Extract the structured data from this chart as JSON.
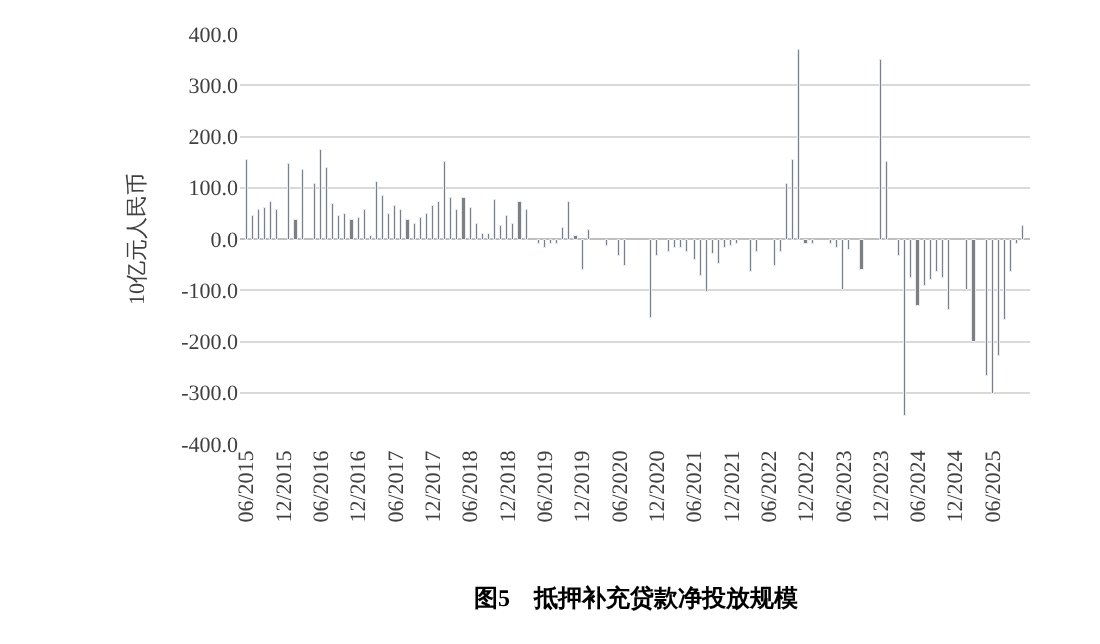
{
  "chart_data": {
    "type": "bar",
    "title": "图5　抵押补充贷款净投放规模",
    "ylabel": "10亿元人民币",
    "categories": [
      "06/2015",
      null,
      null,
      null,
      null,
      null,
      "12/2015",
      null,
      null,
      null,
      null,
      null,
      "06/2016",
      null,
      null,
      null,
      null,
      null,
      "12/2016",
      null,
      null,
      null,
      null,
      null,
      "06/2017",
      null,
      null,
      null,
      null,
      null,
      "12/2017",
      null,
      null,
      null,
      null,
      null,
      "06/2018",
      null,
      null,
      null,
      null,
      null,
      "12/2018",
      null,
      null,
      null,
      null,
      null,
      "06/2019",
      null,
      null,
      null,
      null,
      null,
      "12/2019",
      null,
      null,
      null,
      null,
      null,
      "06/2020",
      null,
      null,
      null,
      null,
      null,
      "12/2020",
      null,
      null,
      null,
      null,
      null,
      "06/2021",
      null,
      null,
      null,
      null,
      null,
      "12/2021",
      null,
      null,
      null,
      null,
      null,
      "06/2022",
      null,
      null,
      null,
      null,
      null,
      "12/2022",
      null,
      null,
      null,
      null,
      null,
      "06/2023",
      null,
      null,
      null,
      null,
      null,
      "12/2023",
      null,
      null,
      null,
      null,
      null,
      "06/2024",
      null,
      null,
      null,
      null,
      null,
      "12/2024",
      null,
      null,
      null,
      null,
      null,
      "06/2025",
      null,
      null,
      null,
      null,
      null
    ],
    "values": [
      156,
      44,
      58,
      62,
      74,
      55,
      null,
      145,
      36,
      134,
      null,
      108,
      173,
      140,
      70,
      44,
      49,
      36,
      41,
      55,
      5,
      110,
      85,
      49,
      63,
      58,
      36,
      30,
      41,
      49,
      66,
      74,
      152,
      81,
      55,
      81,
      60,
      30,
      11,
      11,
      75,
      25,
      44,
      30,
      71,
      58,
      null,
      -11,
      -19,
      -11,
      -8,
      23,
      74,
      5,
      -60,
      19,
      null,
      null,
      -14,
      null,
      -33,
      -52,
      null,
      null,
      null,
      -156,
      -33,
      null,
      -25,
      -16,
      -16,
      -25,
      -41,
      -74,
      -104,
      -30,
      -47,
      -19,
      -14,
      -8,
      null,
      -63,
      -25,
      null,
      null,
      -52,
      -25,
      107,
      153,
      368,
      -11,
      -8,
      null,
      null,
      -11,
      -16,
      -99,
      -22,
      null,
      -60,
      null,
      null,
      351,
      151,
      null,
      -33,
      -344,
      -77,
      -129,
      -90,
      -79,
      -63,
      -77,
      -138,
      null,
      null,
      -101,
      -200,
      null,
      -268,
      -303,
      -227,
      -159,
      -63,
      -8,
      25
    ],
    "color": "#7f7f7f",
    "ylim": [
      -400,
      400
    ],
    "yticks": [
      {
        "value": -400,
        "label": "-400.0"
      },
      {
        "value": -300,
        "label": "-300.0"
      },
      {
        "value": -200,
        "label": "-200.0"
      },
      {
        "value": -100,
        "label": "-100.0"
      },
      {
        "value": 0,
        "label": "0.0"
      },
      {
        "value": 100,
        "label": "100.0"
      },
      {
        "value": 200,
        "label": "200.0"
      },
      {
        "value": 300,
        "label": "300.0"
      },
      {
        "value": 400,
        "label": "400.0"
      }
    ],
    "grid": "y",
    "legend": false
  }
}
